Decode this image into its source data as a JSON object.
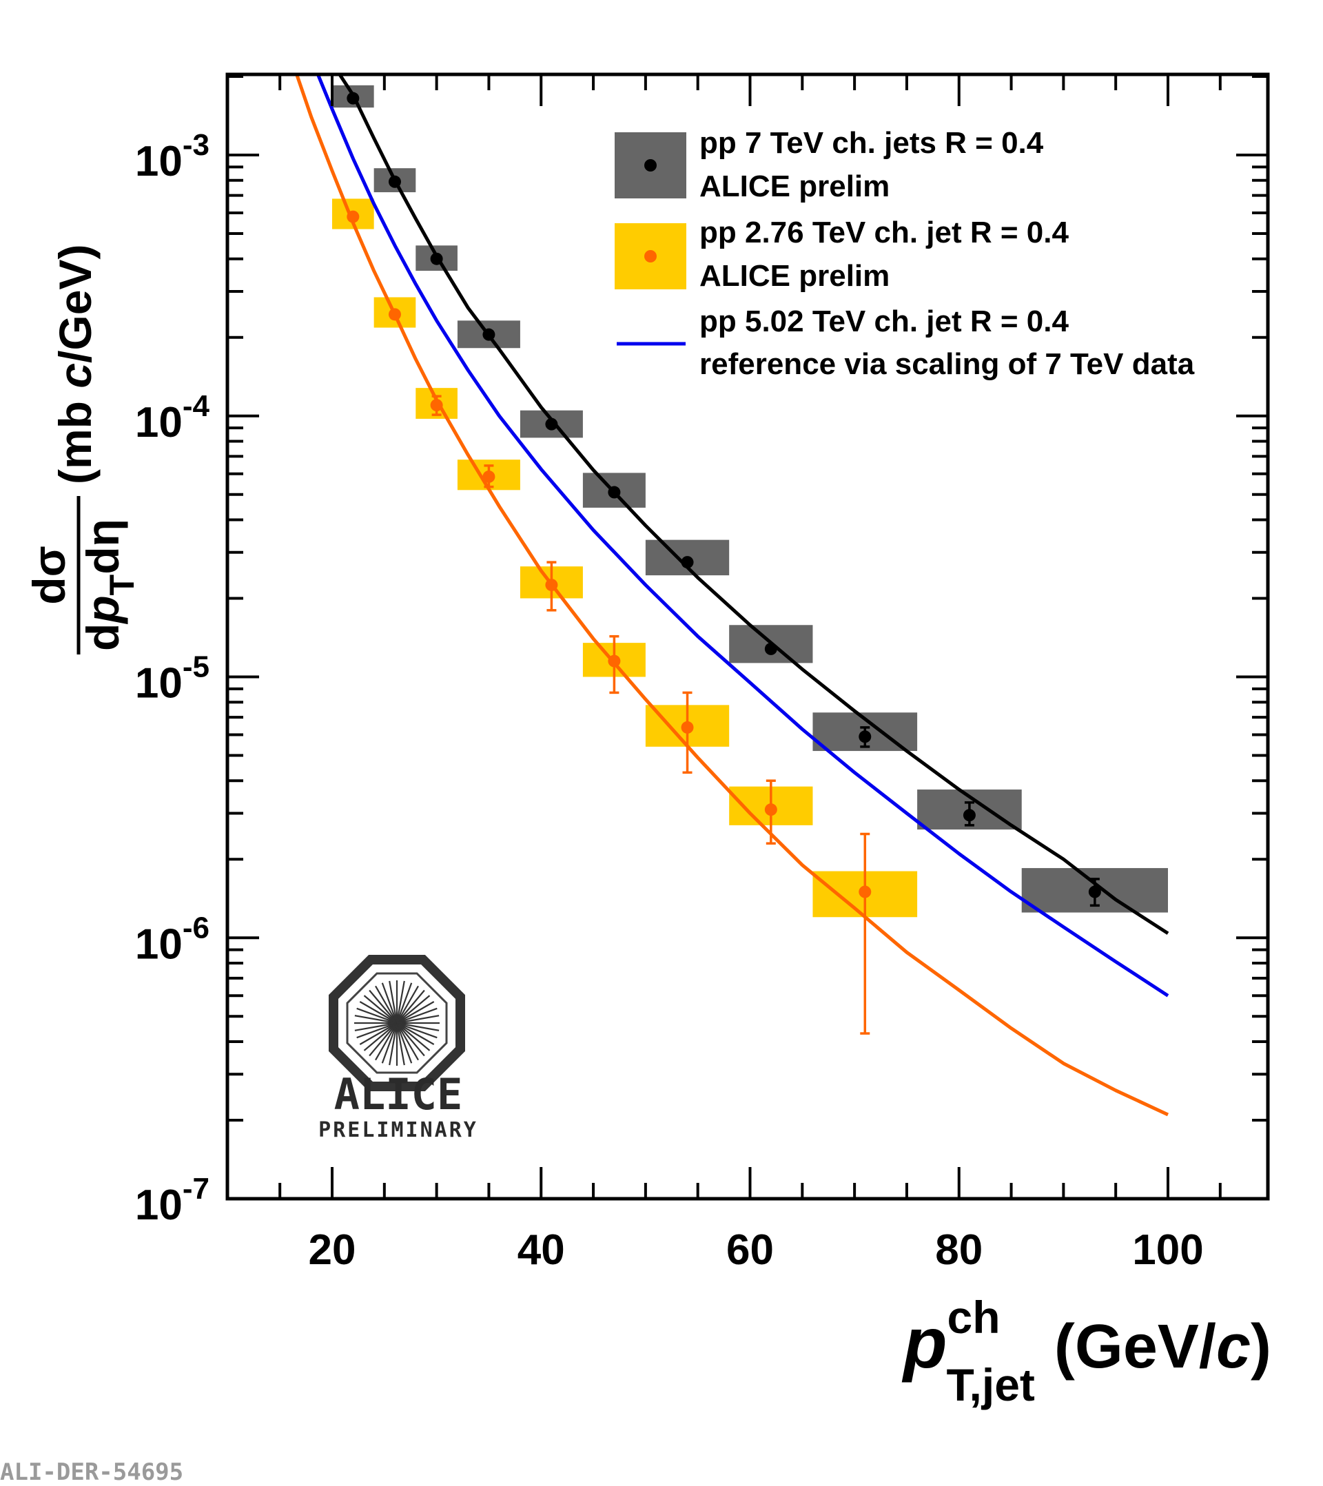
{
  "chart_data": {
    "type": "scatter",
    "y_scale": "log",
    "xlim": [
      10,
      110
    ],
    "ylim": [
      1e-07,
      0.002
    ],
    "x_ticks": [
      "20",
      "40",
      "60",
      "80",
      "100"
    ],
    "y_ticks": [
      {
        "value": 0.001,
        "mantissa": "10",
        "exp": "-3"
      },
      {
        "value": 0.0001,
        "mantissa": "10",
        "exp": "-4"
      },
      {
        "value": 1e-05,
        "mantissa": "10",
        "exp": "-5"
      },
      {
        "value": 1e-06,
        "mantissa": "10",
        "exp": "-6"
      },
      {
        "value": 1e-07,
        "mantissa": "10",
        "exp": "-7"
      }
    ],
    "xlabel": {
      "p": "p",
      "sup": "ch",
      "sub": "T,jet",
      "units_open": "(GeV/",
      "c": "c",
      "units_close": ")"
    },
    "ylabel": {
      "num": "dσ",
      "den_d": "d",
      "den_p": "p",
      "den_sub": "T",
      "den_rest": "dη",
      "units_open": "(mb ",
      "c": "c",
      "units_close": "/GeV)"
    },
    "legend_position": "top-right",
    "series": [
      {
        "name_line1": "pp 7 TeV ch. jets R = 0.4",
        "name_line2": "ALICE prelim",
        "type": "points-with-systematic-boxes",
        "marker_color": "#000000",
        "box_color": "#666666",
        "points": [
          {
            "x": 22,
            "y": 0.00165,
            "xlow": 20,
            "xhigh": 24,
            "sys_low": 0.00152,
            "sys_high": 0.00185,
            "stat_low": 0.00165,
            "stat_high": 0.00165
          },
          {
            "x": 26,
            "y": 0.00079,
            "xlow": 24,
            "xhigh": 28,
            "sys_low": 0.00072,
            "sys_high": 0.00089,
            "stat_low": 0.00079,
            "stat_high": 0.00079
          },
          {
            "x": 30,
            "y": 0.0004,
            "xlow": 28,
            "xhigh": 32,
            "sys_low": 0.00036,
            "sys_high": 0.00045,
            "stat_low": 0.0004,
            "stat_high": 0.0004
          },
          {
            "x": 35,
            "y": 0.000205,
            "xlow": 32,
            "xhigh": 38,
            "sys_low": 0.000182,
            "sys_high": 0.000232,
            "stat_low": 0.000205,
            "stat_high": 0.000205
          },
          {
            "x": 41,
            "y": 9.3e-05,
            "xlow": 38,
            "xhigh": 44,
            "sys_low": 8.25e-05,
            "sys_high": 0.000105,
            "stat_low": 9.3e-05,
            "stat_high": 9.3e-05
          },
          {
            "x": 47,
            "y": 5.1e-05,
            "xlow": 44,
            "xhigh": 50,
            "sys_low": 4.45e-05,
            "sys_high": 6.05e-05,
            "stat_low": 5.1e-05,
            "stat_high": 5.1e-05
          },
          {
            "x": 54,
            "y": 2.75e-05,
            "xlow": 50,
            "xhigh": 58,
            "sys_low": 2.45e-05,
            "sys_high": 3.35e-05,
            "stat_low": 2.75e-05,
            "stat_high": 2.75e-05
          },
          {
            "x": 62,
            "y": 1.28e-05,
            "xlow": 58,
            "xhigh": 66,
            "sys_low": 1.13e-05,
            "sys_high": 1.58e-05,
            "stat_low": 1.28e-05,
            "stat_high": 1.28e-05
          },
          {
            "x": 71,
            "y": 5.9e-06,
            "xlow": 66,
            "xhigh": 76,
            "sys_low": 5.2e-06,
            "sys_high": 7.3e-06,
            "stat_low": 5.4e-06,
            "stat_high": 6.4e-06
          },
          {
            "x": 81,
            "y": 2.95e-06,
            "xlow": 76,
            "xhigh": 86,
            "sys_low": 2.6e-06,
            "sys_high": 3.7e-06,
            "stat_low": 2.7e-06,
            "stat_high": 3.3e-06
          },
          {
            "x": 93,
            "y": 1.5e-06,
            "xlow": 86,
            "xhigh": 100,
            "sys_low": 1.25e-06,
            "sys_high": 1.85e-06,
            "stat_low": 1.33e-06,
            "stat_high": 1.68e-06
          }
        ]
      },
      {
        "name_line1": "pp 2.76 TeV ch. jet R = 0.4",
        "name_line2": "ALICE prelim",
        "type": "points-with-systematic-boxes",
        "marker_color": "#ff6600",
        "box_color": "#ffcc00",
        "points": [
          {
            "x": 22,
            "y": 0.00058,
            "xlow": 20,
            "xhigh": 24,
            "sys_low": 0.00052,
            "sys_high": 0.00068,
            "stat_low": 0.00058,
            "stat_high": 0.00058
          },
          {
            "x": 26,
            "y": 0.000245,
            "xlow": 24,
            "xhigh": 28,
            "sys_low": 0.000218,
            "sys_high": 0.000285,
            "stat_low": 0.000245,
            "stat_high": 0.000245
          },
          {
            "x": 30,
            "y": 0.00011,
            "xlow": 28,
            "xhigh": 32,
            "sys_low": 9.75e-05,
            "sys_high": 0.000128,
            "stat_low": 0.000101,
            "stat_high": 0.000119
          },
          {
            "x": 35,
            "y": 5.85e-05,
            "xlow": 32,
            "xhigh": 38,
            "sys_low": 5.2e-05,
            "sys_high": 6.8e-05,
            "stat_low": 5.35e-05,
            "stat_high": 6.45e-05
          },
          {
            "x": 41,
            "y": 2.25e-05,
            "xlow": 38,
            "xhigh": 44,
            "sys_low": 2e-05,
            "sys_high": 2.65e-05,
            "stat_low": 1.8e-05,
            "stat_high": 2.75e-05
          },
          {
            "x": 47,
            "y": 1.15e-05,
            "xlow": 44,
            "xhigh": 50,
            "sys_low": 1e-05,
            "sys_high": 1.35e-05,
            "stat_low": 8.7e-06,
            "stat_high": 1.43e-05
          },
          {
            "x": 54,
            "y": 6.4e-06,
            "xlow": 50,
            "xhigh": 58,
            "sys_low": 5.4e-06,
            "sys_high": 7.8e-06,
            "stat_low": 4.3e-06,
            "stat_high": 8.7e-06
          },
          {
            "x": 62,
            "y": 3.1e-06,
            "xlow": 58,
            "xhigh": 66,
            "sys_low": 2.7e-06,
            "sys_high": 3.8e-06,
            "stat_low": 2.3e-06,
            "stat_high": 4e-06
          },
          {
            "x": 71,
            "y": 1.5e-06,
            "xlow": 66,
            "xhigh": 76,
            "sys_low": 1.2e-06,
            "sys_high": 1.8e-06,
            "stat_low": 4.3e-07,
            "stat_high": 2.5e-06
          }
        ]
      },
      {
        "name_line1": "pp 5.02 TeV ch. jet R = 0.4",
        "name_line2": "reference via scaling of 7 TeV data",
        "type": "line",
        "color": "#0000ee",
        "in_legend": true,
        "x": [
          18.5,
          20,
          22,
          24,
          26,
          28,
          30,
          33,
          36,
          40,
          45,
          50,
          55,
          60,
          65,
          70,
          75,
          80,
          85,
          90,
          95,
          100
        ],
        "y": [
          0.0021,
          0.0015,
          0.00097,
          0.00065,
          0.00045,
          0.00032,
          0.000232,
          0.00015,
          0.0001,
          6.25e-05,
          3.65e-05,
          2.25e-05,
          1.43e-05,
          9.5e-06,
          6.3e-06,
          4.3e-06,
          3e-06,
          2.1e-06,
          1.5e-06,
          1.1e-06,
          8.1e-07,
          6e-07
        ]
      },
      {
        "name_line1": "",
        "type": "line",
        "color": "#000000",
        "in_legend": false,
        "x": [
          20.5,
          22,
          24,
          26,
          28,
          30,
          33,
          36,
          40,
          45,
          50,
          55,
          60,
          65,
          70,
          75,
          80,
          85,
          90,
          95,
          100
        ],
        "y": [
          0.0021,
          0.0017,
          0.00116,
          0.0008,
          0.00057,
          0.00041,
          0.00026,
          0.00018,
          0.000108,
          6.2e-05,
          3.8e-05,
          2.4e-05,
          1.58e-05,
          1.07e-05,
          7.4e-06,
          5.2e-06,
          3.7e-06,
          2.7e-06,
          2e-06,
          1.4e-06,
          1.04e-06
        ]
      },
      {
        "name_line1": "",
        "type": "line",
        "color": "#ff6600",
        "in_legend": false,
        "x": [
          16.5,
          18,
          20,
          22,
          24,
          26,
          28,
          30,
          33,
          36,
          40,
          45,
          50,
          55,
          60,
          65,
          70,
          75,
          80,
          85,
          90,
          95,
          100
        ],
        "y": [
          0.0021,
          0.0014,
          0.00087,
          0.00055,
          0.00036,
          0.000245,
          0.000165,
          0.000115,
          7.1e-05,
          4.5e-05,
          2.55e-05,
          1.4e-05,
          8.2e-06,
          4.9e-06,
          3e-06,
          1.9e-06,
          1.3e-06,
          8.8e-07,
          6.3e-07,
          4.5e-07,
          3.3e-07,
          2.6e-07,
          2.1e-07
        ]
      }
    ]
  },
  "logo": {
    "name": "ALICE",
    "subtitle": "PRELIMINARY"
  },
  "footer": {
    "id": "ALI-DER-54695"
  }
}
